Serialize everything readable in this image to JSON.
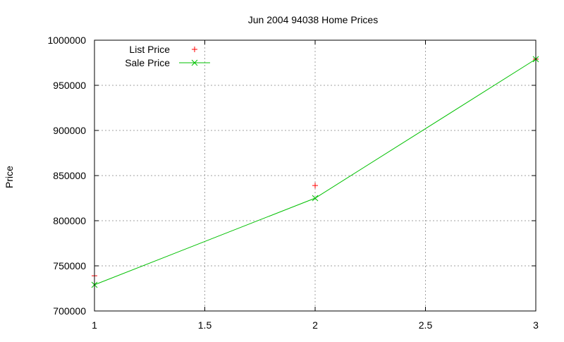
{
  "chart_data": {
    "type": "line",
    "title": "Jun 2004 94038 Home Prices",
    "xlabel": "",
    "ylabel": "Price",
    "x": [
      1,
      2,
      3
    ],
    "xlim": [
      1,
      3
    ],
    "ylim": [
      700000,
      1000000
    ],
    "xticks": [
      "1",
      "1.5",
      "2",
      "2.5",
      "3"
    ],
    "yticks": [
      "700000",
      "750000",
      "800000",
      "850000",
      "900000",
      "950000",
      "1000000"
    ],
    "grid": true,
    "legend_position": "top-left",
    "series": [
      {
        "name": "List Price",
        "style": "points",
        "marker": "+",
        "color": "#ff0000",
        "values": [
          739000,
          839000,
          979000
        ]
      },
      {
        "name": "Sale Price",
        "style": "linespoints",
        "marker": "x",
        "color": "#00c000",
        "values": [
          729000,
          825000,
          979000
        ]
      }
    ]
  },
  "legend": {
    "list_label": "List Price",
    "sale_label": "Sale Price"
  }
}
